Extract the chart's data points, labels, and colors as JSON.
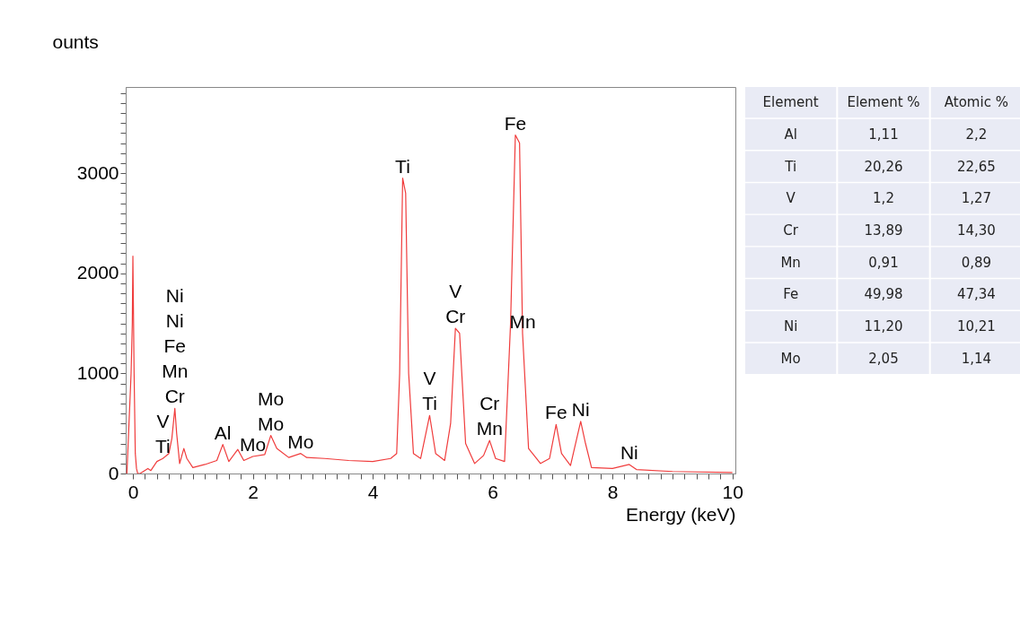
{
  "chart_data": [
    {
      "type": "line",
      "ylabel": "ounts",
      "xlabel": "Energy (keV)",
      "series": [
        {
          "color": "#f03c3c",
          "x": [
            -0.1,
            -0.03,
            -0.01,
            0,
            0.02,
            0.04,
            0.06,
            0.08,
            0.12,
            0.25,
            0.3,
            0.4,
            0.5,
            0.6,
            0.65,
            0.7,
            0.73,
            0.78,
            0.85,
            0.9,
            1.0,
            1.2,
            1.4,
            1.5,
            1.6,
            1.75,
            1.85,
            2.0,
            2.2,
            2.3,
            2.4,
            2.6,
            2.8,
            2.9,
            3.2,
            3.6,
            4.0,
            4.3,
            4.4,
            4.45,
            4.5,
            4.55,
            4.6,
            4.68,
            4.8,
            4.95,
            5.05,
            5.2,
            5.3,
            5.38,
            5.45,
            5.55,
            5.7,
            5.85,
            5.95,
            6.05,
            6.2,
            6.3,
            6.38,
            6.45,
            6.5,
            6.6,
            6.8,
            6.95,
            7.06,
            7.15,
            7.3,
            7.47,
            7.55,
            7.65,
            8.0,
            8.28,
            8.4,
            9.0,
            10.0
          ],
          "values": [
            0,
            1000,
            1500,
            2170,
            1000,
            200,
            50,
            0,
            0,
            50,
            30,
            120,
            150,
            200,
            350,
            650,
            400,
            100,
            250,
            150,
            60,
            90,
            130,
            290,
            120,
            240,
            130,
            170,
            190,
            380,
            250,
            160,
            200,
            160,
            150,
            130,
            120,
            150,
            200,
            1000,
            2950,
            2800,
            1000,
            200,
            150,
            580,
            200,
            130,
            500,
            1450,
            1400,
            300,
            100,
            180,
            330,
            150,
            120,
            1500,
            3380,
            3300,
            1400,
            250,
            100,
            150,
            490,
            200,
            80,
            520,
            300,
            60,
            50,
            90,
            40,
            20,
            10
          ]
        }
      ],
      "xlim": [
        -0.12,
        10.05
      ],
      "ylim": [
        0,
        3860
      ],
      "xticks": [
        0,
        {
          "value": 0.2,
          "label": null
        },
        {
          "value": 0.4,
          "label": null
        },
        {
          "value": 0.6,
          "label": null
        },
        {
          "value": 0.8,
          "label": null
        },
        {
          "value": 1,
          "label": null
        },
        {
          "value": 1.2,
          "label": null
        },
        {
          "value": 1.4,
          "label": null
        },
        {
          "value": 1.6,
          "label": null
        },
        {
          "value": 1.8,
          "label": null
        },
        2,
        {
          "value": 2.2,
          "label": null
        },
        {
          "value": 2.4,
          "label": null
        },
        {
          "value": 2.6,
          "label": null
        },
        {
          "value": 2.8,
          "label": null
        },
        {
          "value": 3,
          "label": null
        },
        {
          "value": 3.2,
          "label": null
        },
        {
          "value": 3.4,
          "label": null
        },
        {
          "value": 3.6,
          "label": null
        },
        {
          "value": 3.8,
          "label": null
        },
        4,
        {
          "value": 4.2,
          "label": null
        },
        {
          "value": 4.4,
          "label": null
        },
        {
          "value": 4.6,
          "label": null
        },
        {
          "value": 4.8,
          "label": null
        },
        {
          "value": 5,
          "label": null
        },
        {
          "value": 5.2,
          "label": null
        },
        {
          "value": 5.4,
          "label": null
        },
        {
          "value": 5.6,
          "label": null
        },
        {
          "value": 5.8,
          "label": null
        },
        6,
        {
          "value": 6.2,
          "label": null
        },
        {
          "value": 6.4,
          "label": null
        },
        {
          "value": 6.6,
          "label": null
        },
        {
          "value": 6.8,
          "label": null
        },
        {
          "value": 7,
          "label": null
        },
        {
          "value": 7.2,
          "label": null
        },
        {
          "value": 7.4,
          "label": null
        },
        {
          "value": 7.6,
          "label": null
        },
        {
          "value": 7.8,
          "label": null
        },
        8,
        {
          "value": 8.2,
          "label": null
        },
        {
          "value": 8.4,
          "label": null
        },
        {
          "value": 8.6,
          "label": null
        },
        {
          "value": 8.8,
          "label": null
        },
        {
          "value": 9,
          "label": null
        },
        {
          "value": 9.2,
          "label": null
        },
        {
          "value": 9.4,
          "label": null
        },
        {
          "value": 9.6,
          "label": null
        },
        {
          "value": 9.8,
          "label": null
        },
        10
      ],
      "yticks": [
        0,
        {
          "value": 100,
          "label": null
        },
        {
          "value": 200,
          "label": null
        },
        {
          "value": 300,
          "label": null
        },
        {
          "value": 400,
          "label": null
        },
        {
          "value": 500,
          "label": null
        },
        {
          "value": 600,
          "label": null
        },
        {
          "value": 700,
          "label": null
        },
        {
          "value": 800,
          "label": null
        },
        {
          "value": 900,
          "label": null
        },
        1000,
        {
          "value": 1100,
          "label": null
        },
        {
          "value": 1200,
          "label": null
        },
        {
          "value": 1300,
          "label": null
        },
        {
          "value": 1400,
          "label": null
        },
        {
          "value": 1500,
          "label": null
        },
        {
          "value": 1600,
          "label": null
        },
        {
          "value": 1700,
          "label": null
        },
        {
          "value": 1800,
          "label": null
        },
        {
          "value": 1900,
          "label": null
        },
        2000,
        {
          "value": 2100,
          "label": null
        },
        {
          "value": 2200,
          "label": null
        },
        {
          "value": 2300,
          "label": null
        },
        {
          "value": 2400,
          "label": null
        },
        {
          "value": 2500,
          "label": null
        },
        {
          "value": 2600,
          "label": null
        },
        {
          "value": 2700,
          "label": null
        },
        {
          "value": 2800,
          "label": null
        },
        {
          "value": 2900,
          "label": null
        },
        3000,
        {
          "value": 3100,
          "label": null
        },
        {
          "value": 3200,
          "label": null
        },
        {
          "value": 3300,
          "label": null
        },
        {
          "value": 3400,
          "label": null
        },
        {
          "value": 3500,
          "label": null
        },
        {
          "value": 3600,
          "label": null
        },
        {
          "value": 3700,
          "label": null
        },
        {
          "value": 3800,
          "label": null
        }
      ],
      "annotations": [
        {
          "text": "Ti",
          "x": 0.5,
          "y": 150
        },
        {
          "text": "V",
          "x": 0.5,
          "y": 150
        },
        {
          "text": "Cr",
          "x": 0.7,
          "y": 650
        },
        {
          "text": "Mn",
          "x": 0.7,
          "y": 650
        },
        {
          "text": "Fe",
          "x": 0.7,
          "y": 650
        },
        "Ni",
        "Ni",
        {
          "text": "Al",
          "x": 1.5,
          "y": 290
        },
        {
          "text": "Mo",
          "x": 2.0,
          "y": 170
        },
        {
          "text": "Mo",
          "x": 2.3,
          "y": 380
        },
        {
          "text": "Mo",
          "x": 2.3,
          "y": 380
        },
        {
          "text": "Mo",
          "x": 2.8,
          "y": 200
        },
        {
          "text": "Ti",
          "x": 4.5,
          "y": 2950
        },
        {
          "text": "Ti",
          "x": 4.95,
          "y": 580
        },
        {
          "text": "V",
          "x": 4.95,
          "y": 580
        },
        {
          "text": "Cr",
          "x": 5.38,
          "y": 1450
        },
        {
          "text": "V",
          "x": 5.38,
          "y": 1450
        },
        {
          "text": "Mn",
          "x": 5.95,
          "y": 330
        },
        {
          "text": "Cr",
          "x": 5.95,
          "y": 330
        },
        {
          "text": "Fe",
          "x": 6.38,
          "y": 3380
        },
        {
          "text": "Mn",
          "x": 6.5,
          "y": 1400
        },
        {
          "text": "Fe",
          "x": 7.06,
          "y": 490
        },
        {
          "text": "Ni",
          "x": 7.47,
          "y": 520
        },
        {
          "text": "Ni",
          "x": 8.28,
          "y": 90
        }
      ]
    },
    {
      "type": "other",
      "categories": [
        "Element",
        "Element %",
        "Atomic %"
      ],
      "y_categories": [
        "Al",
        "Ti",
        "V",
        "Cr",
        "Mn",
        "Fe",
        "Ni",
        "Mo"
      ],
      "cell_labels": [
        [
          "1,11",
          "2,2"
        ],
        [
          "20,26",
          "22,65"
        ],
        [
          "1,2",
          "1,27"
        ],
        [
          "13,89",
          "14,30"
        ],
        [
          "0,91",
          "0,89"
        ],
        [
          "49,98",
          "47,34"
        ],
        [
          "11,20",
          "10,21"
        ],
        [
          "2,05",
          "1,14"
        ]
      ]
    }
  ]
}
